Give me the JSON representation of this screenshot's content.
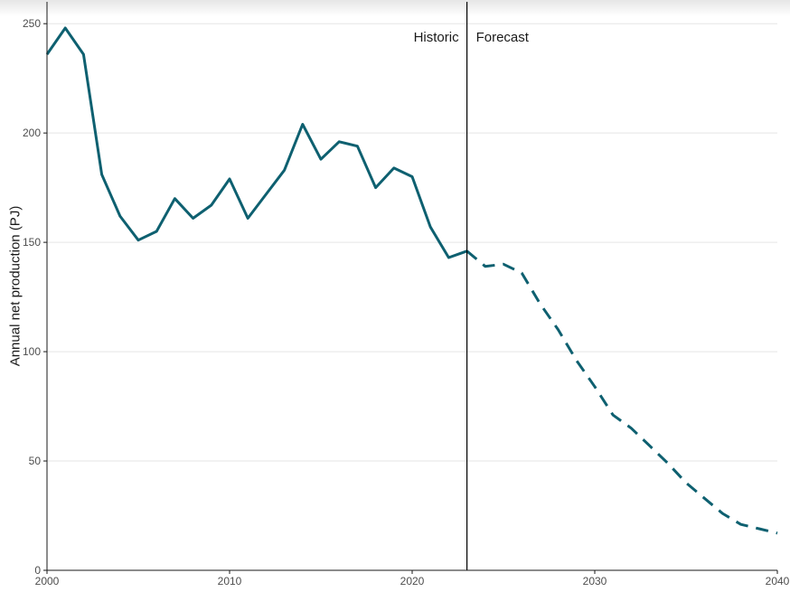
{
  "chart_data": {
    "type": "line",
    "ylabel": "Annual net production (PJ)",
    "xlim": [
      2000,
      2040
    ],
    "ylim": [
      0,
      260
    ],
    "x_ticks": [
      "2000",
      "2010",
      "2020",
      "2030",
      "2040"
    ],
    "y_ticks": [
      "0",
      "50",
      "100",
      "150",
      "200",
      "250"
    ],
    "grid": "horizontal",
    "divider_year": 2023,
    "region_labels": {
      "left": "Historic",
      "right": "Forecast"
    },
    "line_color": "#0e6070",
    "series": [
      {
        "style": "solid",
        "x": [
          2000,
          2001,
          2002,
          2003,
          2004,
          2005,
          2006,
          2007,
          2008,
          2009,
          2010,
          2011,
          2012,
          2013,
          2014,
          2015,
          2016,
          2017,
          2018,
          2019,
          2020,
          2021,
          2022,
          2023
        ],
        "y": [
          236,
          248,
          236,
          181,
          162,
          151,
          155,
          170,
          161,
          167,
          179,
          161,
          172,
          183,
          204,
          188,
          196,
          194,
          175,
          184,
          180,
          157,
          143,
          146
        ]
      },
      {
        "style": "dashed",
        "x": [
          2023,
          2024,
          2025,
          2026,
          2027,
          2028,
          2029,
          2030,
          2031,
          2032,
          2033,
          2034,
          2035,
          2036,
          2037,
          2038,
          2039,
          2040
        ],
        "y": [
          146,
          139,
          140,
          136,
          122,
          110,
          96,
          84,
          71,
          65,
          57,
          49,
          40,
          33,
          26,
          21,
          19,
          17
        ]
      }
    ]
  }
}
